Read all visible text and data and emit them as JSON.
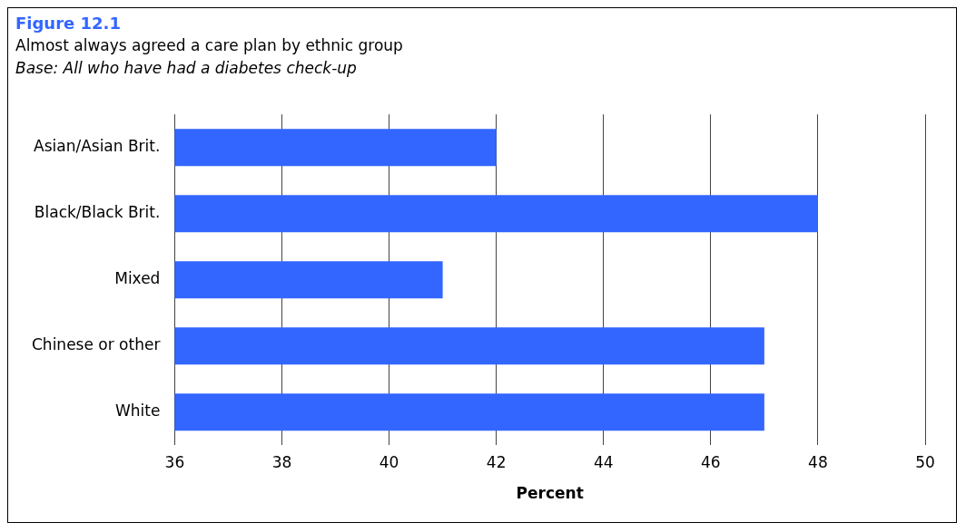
{
  "chart_data": {
    "type": "bar",
    "orientation": "horizontal",
    "title": "Figure 12.1",
    "subtitle": "Almost always agreed a care plan by ethnic group",
    "annotations": [
      "Base: All who have had a diabetes check-up"
    ],
    "xlabel": "Percent",
    "categories": [
      "Asian/Asian Brit.",
      "Black/Black Brit.",
      "Mixed",
      "Chinese or other",
      "White"
    ],
    "values": [
      42,
      48,
      41,
      47,
      47
    ],
    "color": "#3366ff",
    "xlim": [
      36,
      50
    ],
    "xticks": [
      36,
      38,
      40,
      42,
      44,
      46,
      48,
      50
    ],
    "grid": "x",
    "legend": false
  }
}
